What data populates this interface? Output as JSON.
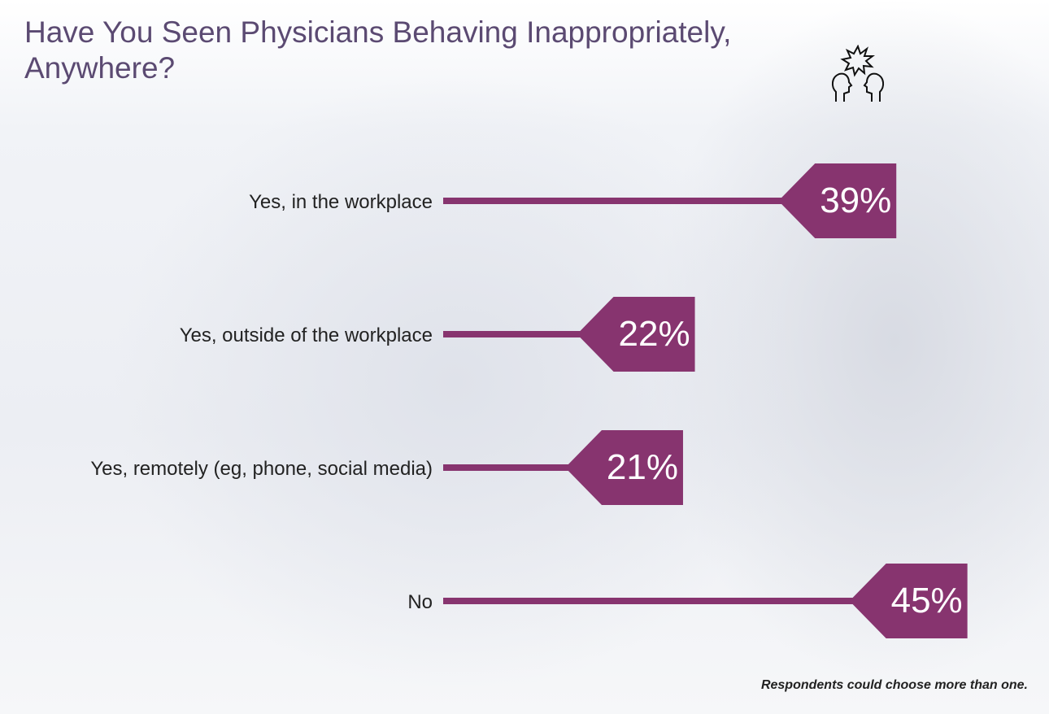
{
  "chart_data": {
    "type": "bar",
    "orientation": "horizontal",
    "title": "Have You Seen Physicians Behaving Inappropriately, Anywhere?",
    "categories": [
      "Yes, in the workplace",
      "Yes, outside of the workplace",
      "Yes, remotely (eg, phone, social media)",
      "No"
    ],
    "values": [
      39,
      22,
      21,
      45
    ],
    "value_labels": [
      "39%",
      "22%",
      "21%",
      "45%"
    ],
    "unit": "%",
    "xlim": [
      0,
      50
    ],
    "grid": false,
    "note": "Respondents could choose more than one."
  },
  "icon": "two-people-arguing-icon",
  "colors": {
    "bar": "#87346f",
    "title": "#5b4a72"
  }
}
